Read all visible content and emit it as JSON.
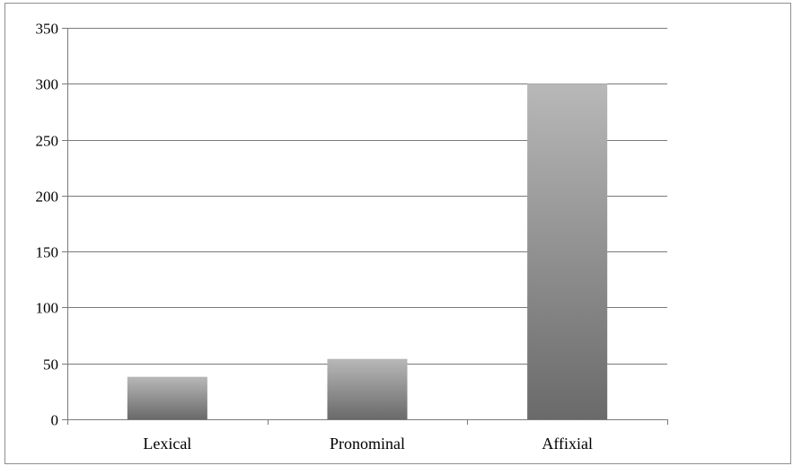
{
  "chart_data": {
    "type": "bar",
    "categories": [
      "Lexical",
      "Pronominal",
      "Affixial"
    ],
    "values": [
      38,
      54,
      300
    ],
    "title": "",
    "xlabel": "",
    "ylabel": "",
    "ylim": [
      0,
      350
    ],
    "yticks": [
      0,
      50,
      100,
      150,
      200,
      250,
      300,
      350
    ],
    "grid": true,
    "legend": "none",
    "colors": {
      "bar_top": "#b8b8b8",
      "bar_bottom": "#6a6a6a",
      "grid": "#7a7a7a",
      "axis": "#7a7a7a"
    }
  }
}
